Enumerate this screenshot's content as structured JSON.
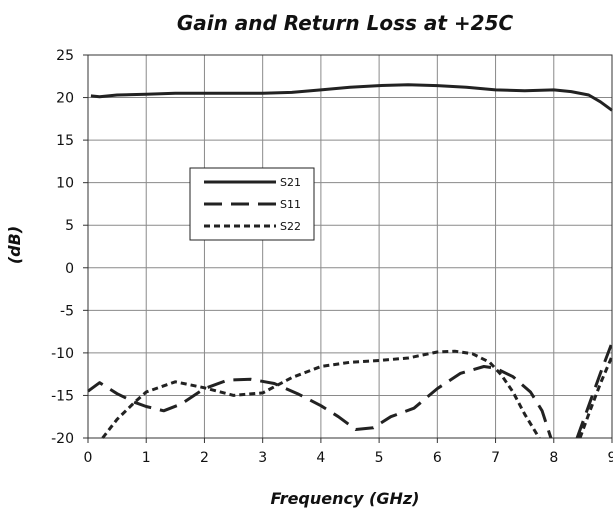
{
  "chart_data": {
    "type": "line",
    "title": "Gain and Return Loss at +25C",
    "xlabel": "Frequency (GHz)",
    "ylabel": "(dB)",
    "xlim": [
      0,
      9
    ],
    "ylim": [
      -20,
      25
    ],
    "x_ticks": [
      "0",
      "1",
      "2",
      "3",
      "4",
      "5",
      "6",
      "7",
      "8",
      "9"
    ],
    "y_ticks": [
      "25",
      "20",
      "15",
      "10",
      "5",
      "0",
      "-5",
      "-10",
      "-15",
      "-20"
    ],
    "grid": true,
    "legend_position": "left-middle",
    "series": [
      {
        "name": "S21",
        "line_style": "solid",
        "x": [
          0.05,
          0.2,
          0.5,
          1.0,
          1.5,
          2.0,
          2.5,
          3.0,
          3.5,
          4.0,
          4.5,
          5.0,
          5.5,
          6.0,
          6.5,
          7.0,
          7.5,
          8.0,
          8.3,
          8.6,
          8.8,
          9.0
        ],
        "y": [
          20.2,
          20.1,
          20.3,
          20.4,
          20.5,
          20.5,
          20.5,
          20.5,
          20.6,
          20.9,
          21.2,
          21.4,
          21.5,
          21.4,
          21.2,
          20.9,
          20.8,
          20.9,
          20.7,
          20.3,
          19.5,
          18.5
        ]
      },
      {
        "name": "S11",
        "line_style": "long-dash",
        "x": [
          0.0,
          0.2,
          0.5,
          0.8,
          1.0,
          1.3,
          1.6,
          2.0,
          2.4,
          2.8,
          3.2,
          3.6,
          4.0,
          4.3,
          4.6,
          4.9,
          5.2,
          5.6,
          6.0,
          6.4,
          6.8,
          7.0,
          7.3,
          7.6,
          7.8,
          7.95
        ],
        "y": [
          -14.5,
          -13.5,
          -14.8,
          -15.8,
          -16.3,
          -16.8,
          -16.0,
          -14.2,
          -13.2,
          -13.1,
          -13.6,
          -14.8,
          -16.2,
          -17.5,
          -19.0,
          -18.8,
          -17.5,
          -16.5,
          -14.2,
          -12.4,
          -11.6,
          -11.8,
          -12.8,
          -14.6,
          -16.8,
          -20.0
        ]
      },
      {
        "name": "S11",
        "line_style": "long-dash",
        "x": [
          8.4,
          8.6,
          8.8,
          9.0
        ],
        "y": [
          -20.0,
          -16.2,
          -12.4,
          -8.8
        ]
      },
      {
        "name": "S22",
        "line_style": "short-dash",
        "x": [
          0.25,
          0.5,
          0.8,
          1.0,
          1.5,
          2.0,
          2.5,
          3.0,
          3.5,
          4.0,
          4.5,
          5.0,
          5.5,
          6.0,
          6.3,
          6.6,
          6.9,
          7.1,
          7.3,
          7.5,
          7.75
        ],
        "y": [
          -20.0,
          -17.8,
          -15.8,
          -14.6,
          -13.4,
          -14.1,
          -15.0,
          -14.7,
          -12.9,
          -11.6,
          -11.1,
          -10.9,
          -10.6,
          -9.9,
          -9.8,
          -10.1,
          -11.1,
          -12.6,
          -14.6,
          -17.2,
          -20.0
        ]
      },
      {
        "name": "S22",
        "line_style": "short-dash",
        "x": [
          8.45,
          8.6,
          8.8,
          9.0
        ],
        "y": [
          -20.0,
          -17.2,
          -13.6,
          -10.4
        ]
      }
    ],
    "legend": [
      {
        "label": "S21",
        "line_style": "solid"
      },
      {
        "label": "S11",
        "line_style": "long-dash"
      },
      {
        "label": "S22",
        "line_style": "short-dash"
      }
    ]
  }
}
